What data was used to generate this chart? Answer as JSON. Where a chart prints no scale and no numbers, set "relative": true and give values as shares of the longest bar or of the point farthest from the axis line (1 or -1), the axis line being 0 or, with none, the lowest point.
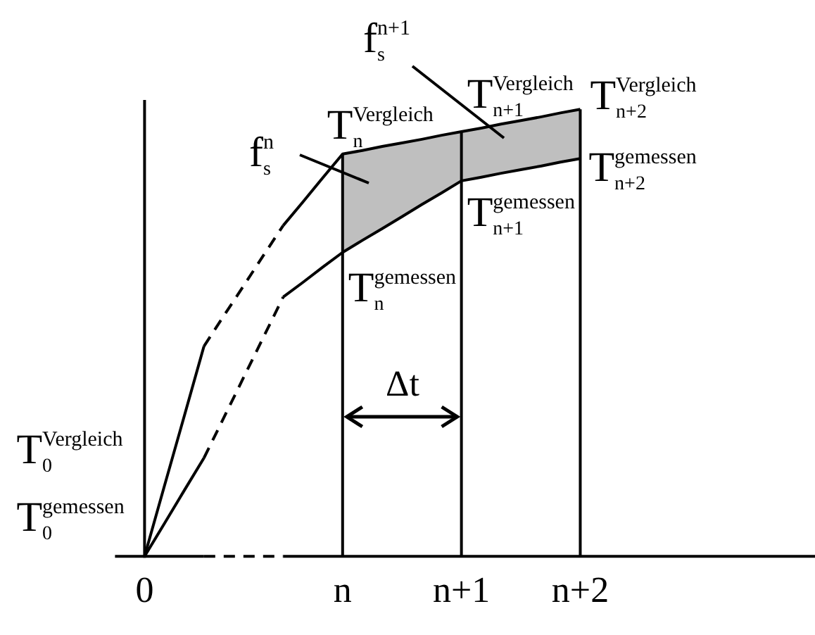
{
  "chart_data": {
    "type": "line",
    "relative": true,
    "marker": "none",
    "tick_labels": "x",
    "grid": "x",
    "categories": [
      "0",
      null,
      null,
      null,
      null,
      null,
      null,
      null,
      null,
      null,
      "n",
      null,
      null,
      null,
      null,
      null,
      "n+1",
      null,
      null,
      null,
      null,
      null,
      "n+2",
      null,
      null,
      null,
      null,
      null,
      null,
      null,
      null,
      null,
      null,
      null
    ],
    "series": [
      {
        "color": "#000000",
        "line_style": "solid",
        "values": [
          0,
          0.157,
          0.313,
          0.47,
          null,
          null,
          null,
          null,
          null,
          null,
          null,
          null,
          null,
          null,
          null,
          null,
          null,
          null,
          null,
          null,
          null,
          null,
          null,
          null,
          null,
          null,
          null,
          null,
          null,
          null,
          null,
          null,
          null,
          null
        ]
      },
      {
        "color": "#000000",
        "line_style": "dashed",
        "values": [
          null,
          null,
          null,
          0.47,
          0.538,
          0.605,
          0.673,
          0.74,
          null,
          null,
          null,
          null,
          null,
          null,
          null,
          null,
          null,
          null,
          null,
          null,
          null,
          null,
          null,
          null,
          null,
          null,
          null,
          null,
          null,
          null,
          null,
          null,
          null,
          null
        ]
      },
      {
        "color": "#000000",
        "line_style": "solid",
        "values": [
          null,
          null,
          null,
          null,
          null,
          null,
          null,
          0.74,
          0.793,
          0.847,
          0.9,
          0.908,
          0.917,
          0.925,
          0.933,
          0.942,
          0.95,
          0.958,
          0.967,
          0.975,
          0.983,
          0.992,
          1,
          null,
          null,
          null,
          null,
          null,
          null,
          null,
          null,
          null,
          null,
          null
        ],
        "lower": [
          null,
          null,
          null,
          null,
          null,
          null,
          null,
          null,
          null,
          null,
          0.68,
          0.707,
          0.733,
          0.76,
          0.787,
          0.813,
          0.84,
          0.848,
          0.857,
          0.865,
          0.873,
          0.882,
          0.89,
          null,
          null,
          null,
          null,
          null,
          null,
          null,
          null,
          null,
          null,
          null
        ],
        "upper": [
          null,
          null,
          null,
          null,
          null,
          null,
          null,
          null,
          null,
          null,
          0.9,
          0.908,
          0.917,
          0.925,
          0.933,
          0.942,
          0.95,
          0.958,
          0.967,
          0.975,
          0.983,
          0.992,
          1,
          null,
          null,
          null,
          null,
          null,
          null,
          null,
          null,
          null,
          null,
          null
        ]
      },
      {
        "color": "#000000",
        "line_style": "solid",
        "values": [
          0,
          0.073,
          0.147,
          0.22,
          null,
          null,
          null,
          null,
          null,
          null,
          null,
          null,
          null,
          null,
          null,
          null,
          null,
          null,
          null,
          null,
          null,
          null,
          null,
          null,
          null,
          null,
          null,
          null,
          null,
          null,
          null,
          null,
          null,
          null
        ]
      },
      {
        "color": "#000000",
        "line_style": "dashed",
        "values": [
          null,
          null,
          null,
          0.22,
          0.31,
          0.4,
          0.49,
          0.58,
          null,
          null,
          null,
          null,
          null,
          null,
          null,
          null,
          null,
          null,
          null,
          null,
          null,
          null,
          null,
          null,
          null,
          null,
          null,
          null,
          null,
          null,
          null,
          null,
          null,
          null
        ]
      },
      {
        "color": "#000000",
        "line_style": "solid",
        "values": [
          null,
          null,
          null,
          null,
          null,
          null,
          null,
          0.58,
          0.613,
          0.647,
          0.68,
          0.707,
          0.733,
          0.76,
          0.787,
          0.813,
          0.84,
          0.848,
          0.857,
          0.865,
          0.873,
          0.882,
          0.89,
          null,
          null,
          null,
          null,
          null,
          null,
          null,
          null,
          null,
          null,
          null
        ]
      }
    ],
    "annotations": [
      {
        "text": "T$_{0}$$^{Vergleich}$",
        "x": "0",
        "y": 0
      },
      {
        "text": "T$_{0}$$^{gemessen}$",
        "x": "0",
        "y": 0
      },
      {
        "text": "T$_{n}$$^{Vergleich}$",
        "x": "n",
        "y": 0.9
      },
      {
        "text": "T$_{n}$$^{gemessen}$",
        "x": "n",
        "y": 0.68
      },
      {
        "text": "T$_{n+1}$$^{Vergleich}$",
        "x": "n+1",
        "y": 0.95
      },
      {
        "text": "T$_{n+1}$$^{gemessen}$",
        "x": "n+1",
        "y": 0.84
      },
      {
        "text": "T$_{n+2}$$^{Vergleich}$",
        "x": "n+2",
        "y": 1
      },
      {
        "text": "T$_{n+2}$$^{gemessen}$",
        "x": "n+2",
        "y": 0.89
      },
      "f$_{s}$$^{n}$",
      "f$_{s}$$^{n+1}$",
      "Δt"
    ]
  }
}
